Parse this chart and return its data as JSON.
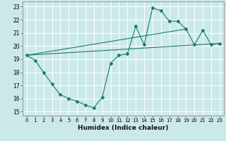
{
  "xlabel": "Humidex (Indice chaleur)",
  "xlim": [
    -0.5,
    23.5
  ],
  "ylim": [
    14.7,
    23.4
  ],
  "xticks": [
    0,
    1,
    2,
    3,
    4,
    5,
    6,
    7,
    8,
    9,
    10,
    11,
    12,
    13,
    14,
    15,
    16,
    17,
    18,
    19,
    20,
    21,
    22,
    23
  ],
  "yticks": [
    15,
    16,
    17,
    18,
    19,
    20,
    21,
    22,
    23
  ],
  "bg_color": "#cce9ea",
  "grid_color": "#ffffff",
  "line_color": "#1a7a6e",
  "main_x": [
    0,
    1,
    2,
    3,
    4,
    5,
    6,
    7,
    8,
    9,
    10,
    11,
    12,
    13,
    14,
    15,
    16,
    17,
    18,
    19,
    20,
    21,
    22,
    23
  ],
  "main_y": [
    19.3,
    18.9,
    18.0,
    17.1,
    16.3,
    16.0,
    15.8,
    15.5,
    15.3,
    16.1,
    18.7,
    19.3,
    19.4,
    21.5,
    20.1,
    22.9,
    22.7,
    21.9,
    21.9,
    21.3,
    20.1,
    21.2,
    20.1,
    20.2
  ],
  "trend1_x": [
    0,
    23
  ],
  "trend1_y": [
    19.3,
    20.2
  ],
  "trend2_x": [
    0,
    19
  ],
  "trend2_y": [
    19.3,
    21.3
  ]
}
